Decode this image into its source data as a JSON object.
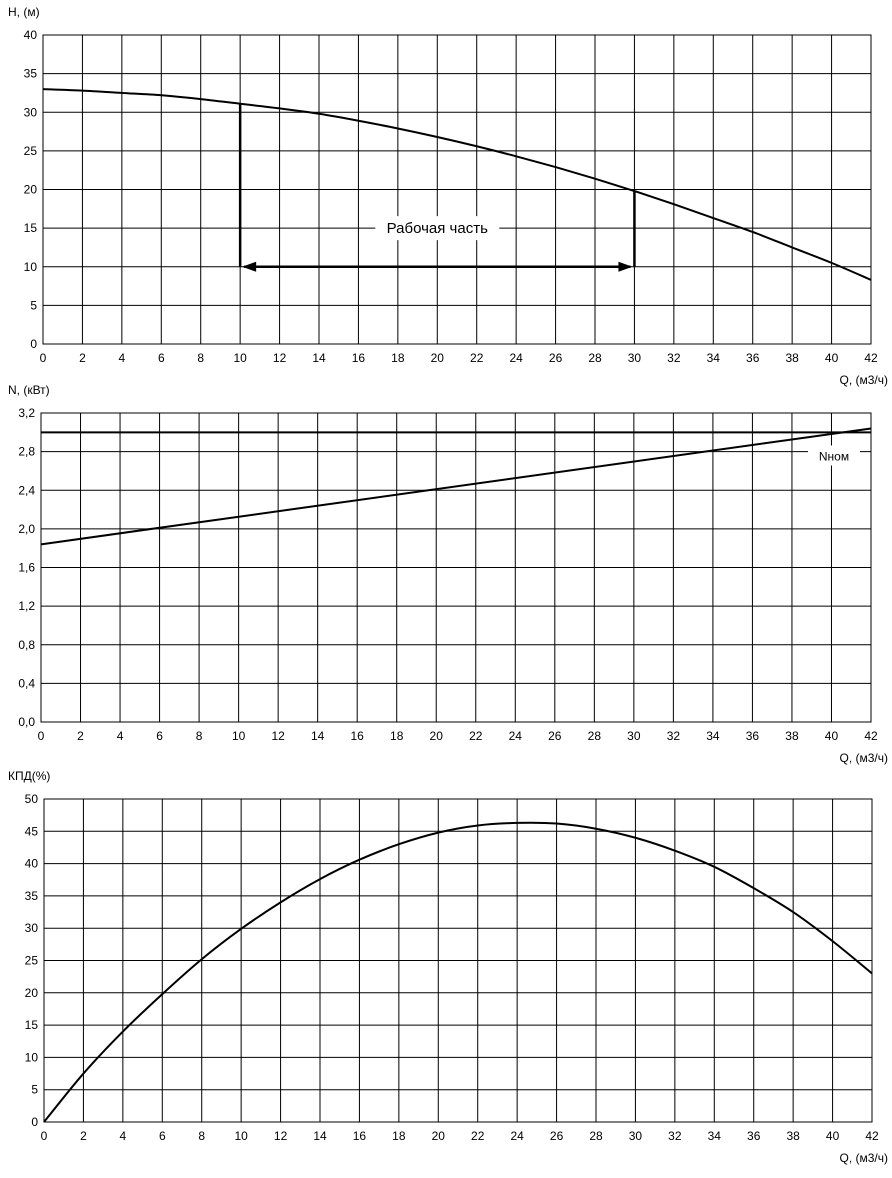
{
  "chart_data": [
    {
      "type": "line",
      "ylabel": "H, (м)",
      "xlabel": "Q, (м3/ч)",
      "xlim": [
        0,
        42
      ],
      "ylim": [
        0,
        40
      ],
      "x_ticks": [
        0,
        2,
        4,
        6,
        8,
        10,
        12,
        14,
        16,
        18,
        20,
        22,
        24,
        26,
        28,
        30,
        32,
        34,
        36,
        38,
        40,
        42
      ],
      "y_ticks": [
        0,
        5,
        10,
        15,
        20,
        25,
        30,
        35,
        40
      ],
      "y_decimals": 0,
      "grid": true,
      "series": [
        {
          "x": [
            0,
            2,
            4,
            6,
            8,
            10,
            12,
            14,
            16,
            18,
            20,
            22,
            24,
            26,
            28,
            30,
            32,
            34,
            36,
            38,
            40,
            42
          ],
          "y": [
            33.0,
            32.8,
            32.5,
            32.2,
            31.7,
            31.1,
            30.5,
            29.8,
            28.9,
            27.9,
            26.8,
            25.6,
            24.3,
            22.9,
            21.4,
            19.8,
            18.1,
            16.3,
            14.5,
            12.5,
            10.5,
            8.3
          ]
        }
      ],
      "work_range": {
        "x_from": 10,
        "x_to": 30,
        "arrow_y": 10
      },
      "annotation": "Рабочая часть"
    },
    {
      "type": "line",
      "ylabel": "N, (кВт)",
      "xlabel": "Q, (м3/ч)",
      "xlim": [
        0,
        42
      ],
      "ylim": [
        0,
        3.2
      ],
      "x_ticks": [
        0,
        2,
        4,
        6,
        8,
        10,
        12,
        14,
        16,
        18,
        20,
        22,
        24,
        26,
        28,
        30,
        32,
        34,
        36,
        38,
        40,
        42
      ],
      "y_ticks": [
        "0,0",
        "0,4",
        "0,8",
        "1,2",
        "1,6",
        "2,0",
        "2,4",
        "2,8",
        "3,2"
      ],
      "y_tick_values": [
        0,
        0.4,
        0.8,
        1.2,
        1.6,
        2.0,
        2.4,
        2.8,
        3.2
      ],
      "grid": true,
      "series": [
        {
          "x": [
            0,
            42
          ],
          "y": [
            1.84,
            3.04
          ]
        }
      ],
      "nominal": {
        "y": 3.0,
        "label": "Nном"
      }
    },
    {
      "type": "line",
      "ylabel": "КПД(%)",
      "xlabel": "Q, (м3/ч)",
      "xlim": [
        0,
        42
      ],
      "ylim": [
        0,
        50
      ],
      "x_ticks": [
        0,
        2,
        4,
        6,
        8,
        10,
        12,
        14,
        16,
        18,
        20,
        22,
        24,
        26,
        28,
        30,
        32,
        34,
        36,
        38,
        40,
        42
      ],
      "y_ticks": [
        0,
        5,
        10,
        15,
        20,
        25,
        30,
        35,
        40,
        45,
        50
      ],
      "y_decimals": 0,
      "grid": true,
      "series": [
        {
          "x": [
            0,
            2,
            4,
            6,
            8,
            10,
            12,
            14,
            16,
            18,
            20,
            22,
            24,
            26,
            28,
            30,
            32,
            34,
            36,
            38,
            40,
            42
          ],
          "y": [
            0,
            7.5,
            14,
            19.8,
            25.2,
            29.9,
            34,
            37.6,
            40.6,
            43,
            44.8,
            45.9,
            46.3,
            46.2,
            45.4,
            44,
            42,
            39.5,
            36.2,
            32.5,
            28,
            23
          ]
        }
      ]
    }
  ]
}
